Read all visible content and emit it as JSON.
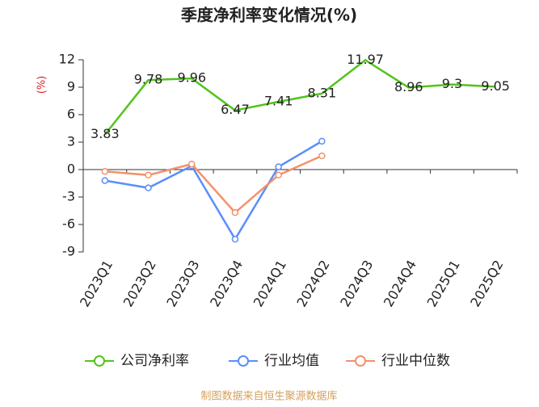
{
  "chart_data": {
    "type": "line",
    "title": "季度净利率变化情况(%)",
    "y_label": "(%)",
    "categories": [
      "2023Q1",
      "2023Q2",
      "2023Q3",
      "2023Q4",
      "2024Q1",
      "2024Q2",
      "2024Q3",
      "2024Q4",
      "2025Q1",
      "2025Q2"
    ],
    "series": [
      {
        "name": "公司净利率",
        "color": "#52c41a",
        "values": [
          3.83,
          9.78,
          9.96,
          6.47,
          7.41,
          8.31,
          11.97,
          8.96,
          9.3,
          9.05
        ],
        "markers": false,
        "data_labels": true
      },
      {
        "name": "行业均值",
        "color": "#5b8ff9",
        "values": [
          -1.2,
          -2.0,
          0.4,
          -7.6,
          0.3,
          3.1,
          null,
          null,
          null,
          null
        ],
        "markers": true,
        "data_labels": false
      },
      {
        "name": "行业中位数",
        "color": "#f4916b",
        "values": [
          -0.2,
          -0.6,
          0.6,
          -4.7,
          -0.6,
          1.5,
          null,
          null,
          null,
          null
        ],
        "markers": true,
        "data_labels": false
      }
    ],
    "ylim": [
      -9,
      12
    ],
    "yticks": [
      -9,
      -6,
      -3,
      0,
      3,
      6,
      9,
      12
    ],
    "source": "制图数据来自恒生聚源数据库"
  }
}
